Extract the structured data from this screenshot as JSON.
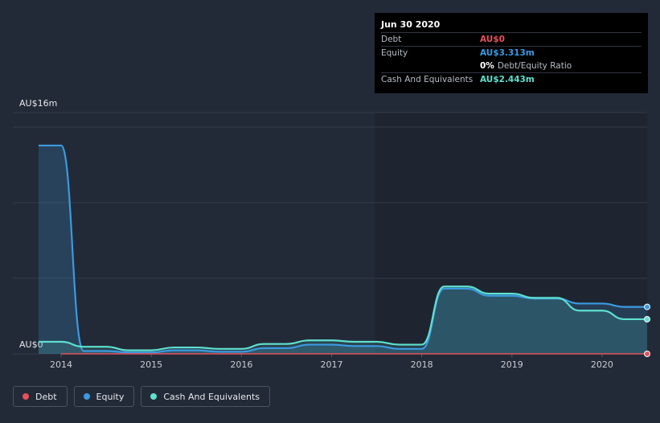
{
  "tooltip": {
    "date": "Jun 30 2020",
    "rows": [
      {
        "label": "Debt",
        "value": "AU$0",
        "color": "#e8505b"
      },
      {
        "label": "Equity",
        "value": "AU$3.313m",
        "color": "#3b9ae0"
      },
      {
        "label": "",
        "value": "0%",
        "sub": "Debt/Equity Ratio",
        "color": "#ffffff"
      },
      {
        "label": "Cash And Equivalents",
        "value": "AU$2.443m",
        "color": "#5ee0cf"
      }
    ]
  },
  "legend": [
    {
      "label": "Debt",
      "color": "#e8505b"
    },
    {
      "label": "Equity",
      "color": "#3b9ae0"
    },
    {
      "label": "Cash And Equivalents",
      "color": "#5ee0cf"
    }
  ],
  "chart_data": {
    "type": "area",
    "ylim": [
      0,
      16
    ],
    "y_tick_labels": [
      "AU$16m",
      "AU$0"
    ],
    "x_ticks": [
      2014,
      2015,
      2016,
      2017,
      2018,
      2019,
      2020
    ],
    "xlim": [
      2013.75,
      2020.5
    ],
    "grid": true,
    "series": [
      {
        "name": "Debt",
        "color": "#e8505b",
        "points": [
          [
            2013.75,
            0
          ],
          [
            2020.5,
            0
          ]
        ]
      },
      {
        "name": "Equity",
        "color": "#3b9ae0",
        "points": [
          [
            2013.75,
            14.7
          ],
          [
            2014.0,
            14.7
          ],
          [
            2014.25,
            0.2
          ],
          [
            2014.5,
            0.2
          ],
          [
            2014.75,
            0.1
          ],
          [
            2015.0,
            0.1
          ],
          [
            2015.25,
            0.25
          ],
          [
            2015.5,
            0.25
          ],
          [
            2015.75,
            0.15
          ],
          [
            2016.0,
            0.15
          ],
          [
            2016.25,
            0.4
          ],
          [
            2016.5,
            0.4
          ],
          [
            2016.75,
            0.65
          ],
          [
            2017.0,
            0.65
          ],
          [
            2017.25,
            0.55
          ],
          [
            2017.5,
            0.55
          ],
          [
            2017.75,
            0.35
          ],
          [
            2018.0,
            0.35
          ],
          [
            2018.25,
            4.6
          ],
          [
            2018.5,
            4.6
          ],
          [
            2018.75,
            4.1
          ],
          [
            2019.0,
            4.1
          ],
          [
            2019.25,
            3.9
          ],
          [
            2019.5,
            3.9
          ],
          [
            2019.75,
            3.55
          ],
          [
            2020.0,
            3.55
          ],
          [
            2020.25,
            3.313
          ],
          [
            2020.5,
            3.313
          ]
        ]
      },
      {
        "name": "Cash And Equivalents",
        "color": "#5ee0cf",
        "points": [
          [
            2013.75,
            0.85
          ],
          [
            2014.0,
            0.85
          ],
          [
            2014.25,
            0.5
          ],
          [
            2014.5,
            0.5
          ],
          [
            2014.75,
            0.25
          ],
          [
            2015.0,
            0.25
          ],
          [
            2015.25,
            0.45
          ],
          [
            2015.5,
            0.45
          ],
          [
            2015.75,
            0.35
          ],
          [
            2016.0,
            0.35
          ],
          [
            2016.25,
            0.7
          ],
          [
            2016.5,
            0.7
          ],
          [
            2016.75,
            0.95
          ],
          [
            2017.0,
            0.95
          ],
          [
            2017.25,
            0.85
          ],
          [
            2017.5,
            0.85
          ],
          [
            2017.75,
            0.65
          ],
          [
            2018.0,
            0.65
          ],
          [
            2018.25,
            4.75
          ],
          [
            2018.5,
            4.75
          ],
          [
            2018.75,
            4.25
          ],
          [
            2019.0,
            4.25
          ],
          [
            2019.25,
            3.95
          ],
          [
            2019.5,
            3.95
          ],
          [
            2019.75,
            3.05
          ],
          [
            2020.0,
            3.05
          ],
          [
            2020.25,
            2.443
          ],
          [
            2020.5,
            2.443
          ]
        ]
      }
    ]
  }
}
